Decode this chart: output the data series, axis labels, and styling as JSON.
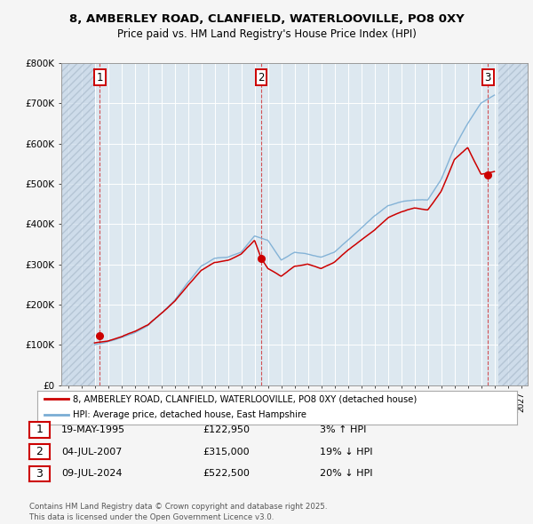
{
  "title1": "8, AMBERLEY ROAD, CLANFIELD, WATERLOOVILLE, PO8 0XY",
  "title2": "Price paid vs. HM Land Registry's House Price Index (HPI)",
  "background_color": "#f5f5f5",
  "plot_bg_color": "#dde8f0",
  "red_line_color": "#cc0000",
  "blue_line_color": "#7aadd4",
  "transactions": [
    {
      "date_num": 1995.38,
      "price": 122950,
      "label": "1"
    },
    {
      "date_num": 2007.5,
      "price": 315000,
      "label": "2"
    },
    {
      "date_num": 2024.52,
      "price": 522500,
      "label": "3"
    }
  ],
  "legend_entries": [
    "8, AMBERLEY ROAD, CLANFIELD, WATERLOOVILLE, PO8 0XY (detached house)",
    "HPI: Average price, detached house, East Hampshire"
  ],
  "table_rows": [
    {
      "num": "1",
      "date": "19-MAY-1995",
      "price": "£122,950",
      "hpi": "3% ↑ HPI"
    },
    {
      "num": "2",
      "date": "04-JUL-2007",
      "price": "£315,000",
      "hpi": "19% ↓ HPI"
    },
    {
      "num": "3",
      "date": "09-JUL-2024",
      "price": "£522,500",
      "hpi": "20% ↓ HPI"
    }
  ],
  "footer": "Contains HM Land Registry data © Crown copyright and database right 2025.\nThis data is licensed under the Open Government Licence v3.0.",
  "ylim": [
    0,
    800000
  ],
  "xlim": [
    1992.5,
    2027.5
  ],
  "yticks": [
    0,
    100000,
    200000,
    300000,
    400000,
    500000,
    600000,
    700000,
    800000
  ],
  "ytick_labels": [
    "£0",
    "£100K",
    "£200K",
    "£300K",
    "£400K",
    "£500K",
    "£600K",
    "£700K",
    "£800K"
  ],
  "xticks": [
    1993,
    1994,
    1995,
    1996,
    1997,
    1998,
    1999,
    2000,
    2001,
    2002,
    2003,
    2004,
    2005,
    2006,
    2007,
    2008,
    2009,
    2010,
    2011,
    2012,
    2013,
    2014,
    2015,
    2016,
    2017,
    2018,
    2019,
    2020,
    2021,
    2022,
    2023,
    2024,
    2025,
    2026,
    2027
  ],
  "hpi_knots": [
    [
      1995,
      100000
    ],
    [
      1996,
      108000
    ],
    [
      1997,
      118000
    ],
    [
      1998,
      130000
    ],
    [
      1999,
      148000
    ],
    [
      2000,
      178000
    ],
    [
      2001,
      210000
    ],
    [
      2002,
      255000
    ],
    [
      2003,
      295000
    ],
    [
      2004,
      315000
    ],
    [
      2005,
      318000
    ],
    [
      2006,
      330000
    ],
    [
      2007,
      370000
    ],
    [
      2008,
      360000
    ],
    [
      2009,
      310000
    ],
    [
      2010,
      330000
    ],
    [
      2011,
      325000
    ],
    [
      2012,
      318000
    ],
    [
      2013,
      330000
    ],
    [
      2014,
      360000
    ],
    [
      2015,
      390000
    ],
    [
      2016,
      420000
    ],
    [
      2017,
      445000
    ],
    [
      2018,
      455000
    ],
    [
      2019,
      460000
    ],
    [
      2020,
      460000
    ],
    [
      2021,
      510000
    ],
    [
      2022,
      590000
    ],
    [
      2023,
      650000
    ],
    [
      2024,
      700000
    ],
    [
      2025,
      720000
    ]
  ],
  "price_knots": [
    [
      1995,
      105000
    ],
    [
      1996,
      110000
    ],
    [
      1997,
      120000
    ],
    [
      1998,
      133000
    ],
    [
      1999,
      150000
    ],
    [
      2000,
      178000
    ],
    [
      2001,
      207000
    ],
    [
      2002,
      248000
    ],
    [
      2003,
      285000
    ],
    [
      2004,
      305000
    ],
    [
      2005,
      310000
    ],
    [
      2006,
      325000
    ],
    [
      2007,
      360000
    ],
    [
      2007.5,
      315000
    ],
    [
      2008,
      290000
    ],
    [
      2009,
      270000
    ],
    [
      2010,
      295000
    ],
    [
      2011,
      300000
    ],
    [
      2012,
      290000
    ],
    [
      2013,
      305000
    ],
    [
      2014,
      335000
    ],
    [
      2015,
      360000
    ],
    [
      2016,
      385000
    ],
    [
      2017,
      415000
    ],
    [
      2018,
      430000
    ],
    [
      2019,
      440000
    ],
    [
      2020,
      435000
    ],
    [
      2021,
      480000
    ],
    [
      2022,
      560000
    ],
    [
      2023,
      590000
    ],
    [
      2024,
      522500
    ],
    [
      2025,
      530000
    ]
  ]
}
